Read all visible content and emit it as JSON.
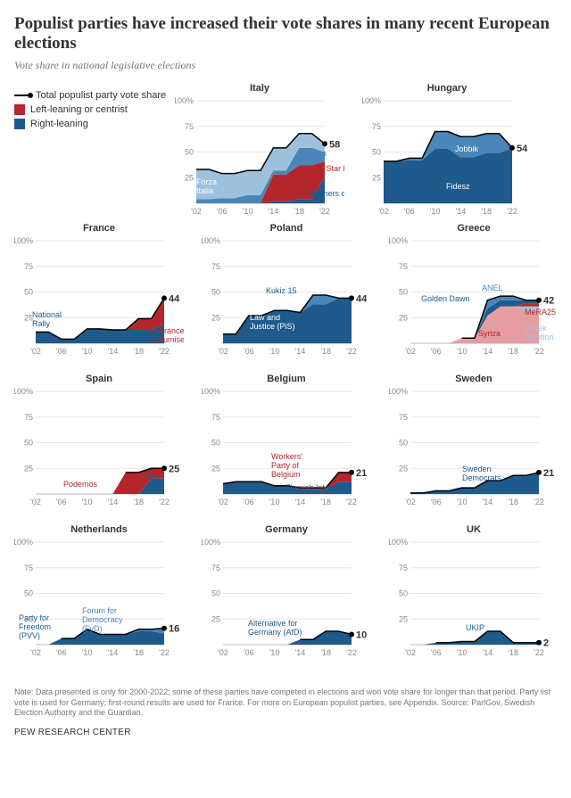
{
  "title": "Populist parties have increased their vote shares in many recent European elections",
  "subtitle": "Vote share in national legislative elections",
  "legend": {
    "total": "Total populist party vote share",
    "left": "Left-leaning or centrist",
    "right": "Right-leaning"
  },
  "colors": {
    "right_dark": "#1f5a8c",
    "right_mid": "#4a86b8",
    "right_light": "#9dc1dd",
    "left_dark": "#b5262c",
    "left_light": "#e49ea1",
    "line": "#000000",
    "grid": "#e5e5e5",
    "axis": "#888888",
    "bg": "#ffffff"
  },
  "axis": {
    "xlabels": [
      "'02",
      "'06",
      "'10",
      "'14",
      "'18",
      "'22"
    ],
    "ylabels": [
      "25",
      "50",
      "75",
      "100%"
    ],
    "ymax": 100
  },
  "panels": [
    {
      "country": "Italy",
      "end_value": 58,
      "series": [
        {
          "name": "Brothers of Italy",
          "color": "#1f5a8c",
          "label_color": "#1f5a8c",
          "lx": 150,
          "ly": 113,
          "vals": [
            0,
            0,
            0,
            0,
            0,
            0,
            2,
            2,
            4,
            4,
            26
          ]
        },
        {
          "name": "Five Star Movement",
          "color": "#b5262c",
          "label_color": "#b5262c",
          "lx": 150,
          "ly": 85,
          "vals": [
            0,
            0,
            0,
            0,
            0,
            0,
            26,
            26,
            33,
            33,
            15
          ]
        },
        {
          "name": "Lega",
          "color": "#4a86b8",
          "label_color": "#4a86b8",
          "lx": 150,
          "ly": 68,
          "vals": [
            4,
            4,
            5,
            5,
            8,
            8,
            4,
            4,
            17,
            17,
            9
          ]
        },
        {
          "name": "Forza Italia",
          "label": "Forza\nItalia",
          "color": "#9dc1dd",
          "label_color": "#ffffff",
          "lx": 24,
          "ly": 100,
          "vals": [
            29,
            29,
            24,
            24,
            24,
            24,
            22,
            22,
            14,
            14,
            8
          ]
        }
      ]
    },
    {
      "country": "Hungary",
      "end_value": 54,
      "series": [
        {
          "name": "Fidesz",
          "color": "#1f5a8c",
          "label_color": "#ffffff",
          "lx": 94,
          "ly": 105,
          "vals": [
            41,
            41,
            42,
            42,
            53,
            53,
            45,
            45,
            49,
            49,
            54
          ]
        },
        {
          "name": "Jobbik",
          "color": "#4a86b8",
          "label_color": "#ffffff",
          "lx": 104,
          "ly": 63,
          "vals": [
            0,
            0,
            2,
            2,
            17,
            17,
            20,
            20,
            19,
            19,
            0
          ]
        }
      ]
    },
    {
      "country": "France",
      "end_value": 44,
      "series": [
        {
          "name": "National Rally",
          "label": "National\nRally",
          "color": "#1f5a8c",
          "label_color": "#1f5a8c",
          "lx": 20,
          "ly": 92,
          "vals": [
            11,
            11,
            4,
            4,
            14,
            14,
            13,
            13,
            13,
            13,
            19
          ]
        },
        {
          "name": "La France Insoumise",
          "label": "La France\nInsoumise",
          "color": "#b5262c",
          "label_color": "#b5262c",
          "lx": 150,
          "ly": 110,
          "vals": [
            0,
            0,
            0,
            0,
            0,
            0,
            0,
            0,
            11,
            11,
            25
          ]
        }
      ]
    },
    {
      "country": "Poland",
      "end_value": 44,
      "series": [
        {
          "name": "Law and Justice (PiS)",
          "label": "Law and\nJustice (PiS)",
          "color": "#1f5a8c",
          "label_color": "#ffffff",
          "lx": 54,
          "ly": 95,
          "vals": [
            9,
            9,
            27,
            27,
            32,
            32,
            30,
            38,
            38,
            44,
            44
          ]
        },
        {
          "name": "Kukiz 15",
          "color": "#4a86b8",
          "label_color": "#1f5a8c",
          "lx": 72,
          "ly": 65,
          "vals": [
            0,
            0,
            0,
            0,
            0,
            0,
            0,
            9,
            9,
            0,
            0
          ]
        }
      ]
    },
    {
      "country": "Greece",
      "end_value": 42,
      "series": [
        {
          "name": "Syriza",
          "color": "#e49ea1",
          "label_color": "#b5262c",
          "lx": 100,
          "ly": 113,
          "vals": [
            0,
            0,
            0,
            0,
            5,
            5,
            27,
            36,
            36,
            32,
            32
          ]
        },
        {
          "name": "Greek Solution",
          "label": "Greek\nSolution",
          "color": "#9dc1dd",
          "label_color": "#9dc1dd",
          "lx": 152,
          "ly": 107,
          "vals": [
            0,
            0,
            0,
            0,
            0,
            0,
            0,
            0,
            0,
            4,
            4
          ]
        },
        {
          "name": "MeRA25",
          "color": "#b5262c",
          "label_color": "#b5262c",
          "lx": 152,
          "ly": 89,
          "vals": [
            0,
            0,
            0,
            0,
            0,
            0,
            0,
            0,
            0,
            3,
            3
          ]
        },
        {
          "name": "Golden Dawn",
          "color": "#1f5a8c",
          "label_color": "#1f5a8c",
          "lx": 36,
          "ly": 74,
          "vals": [
            0,
            0,
            0,
            0,
            0,
            0,
            7,
            6,
            6,
            3,
            3
          ]
        },
        {
          "name": "ANEL",
          "color": "#4a86b8",
          "label_color": "#4a86b8",
          "lx": 104,
          "ly": 62,
          "vals": [
            0,
            0,
            0,
            0,
            0,
            0,
            8,
            4,
            4,
            0,
            0
          ]
        }
      ]
    },
    {
      "country": "Spain",
      "end_value": 25,
      "series": [
        {
          "name": "Vox",
          "color": "#1f5a8c",
          "label_color": "#1f5a8c",
          "lx": 146,
          "ly": 104,
          "vals": [
            0,
            0,
            0,
            0,
            0,
            0,
            0,
            0,
            0,
            15,
            15
          ]
        },
        {
          "name": "Podemos",
          "color": "#b5262c",
          "label_color": "#b5262c",
          "lx": 55,
          "ly": 113,
          "vals": [
            0,
            0,
            0,
            0,
            0,
            0,
            0,
            21,
            21,
            10,
            10
          ]
        }
      ]
    },
    {
      "country": "Belgium",
      "end_value": 21,
      "series": [
        {
          "name": "Flemish Interest",
          "color": "#1f5a8c",
          "label_color": "#1f5a8c",
          "lx": 94,
          "ly": 117,
          "vals": [
            10,
            12,
            12,
            12,
            8,
            8,
            4,
            4,
            4,
            12,
            12
          ]
        },
        {
          "name": "Workers' Party of Belgium",
          "label": "Workers'\nParty of\nBelgium",
          "color": "#b5262c",
          "label_color": "#b5262c",
          "lx": 78,
          "ly": 82,
          "vals": [
            0,
            0,
            0,
            0,
            0,
            0,
            2,
            2,
            2,
            9,
            9
          ]
        }
      ]
    },
    {
      "country": "Sweden",
      "end_value": 21,
      "series": [
        {
          "name": "Sweden Democrats",
          "label": "Sweden\nDemocrats",
          "color": "#1f5a8c",
          "label_color": "#1f5a8c",
          "lx": 82,
          "ly": 96,
          "vals": [
            1,
            1,
            3,
            3,
            6,
            6,
            13,
            13,
            18,
            18,
            21
          ]
        }
      ]
    },
    {
      "country": "Netherlands",
      "end_value": 16,
      "series": [
        {
          "name": "Party for Freedom (PVV)",
          "label": "Party for\nFreedom\n(PVV)",
          "color": "#1f5a8c",
          "label_color": "#1f5a8c",
          "lx": 5,
          "ly": 94,
          "vals": [
            0,
            0,
            6,
            6,
            15,
            10,
            10,
            10,
            13,
            13,
            11
          ]
        },
        {
          "name": "Forum for Democracy (FvD)",
          "label": "Forum for\nDemocracy\n(FvD)",
          "color": "#4a86b8",
          "label_color": "#4a86b8",
          "lx": 76,
          "ly": 86,
          "vals": [
            0,
            0,
            0,
            0,
            0,
            0,
            0,
            0,
            2,
            2,
            5
          ]
        }
      ]
    },
    {
      "country": "Germany",
      "end_value": 10,
      "series": [
        {
          "name": "Alternative for Germany (AfD)",
          "label": "Alternative for\nGermany (AfD)",
          "color": "#1f5a8c",
          "label_color": "#1f5a8c",
          "lx": 52,
          "ly": 100,
          "vals": [
            0,
            0,
            0,
            0,
            0,
            0,
            5,
            5,
            13,
            13,
            10
          ]
        }
      ]
    },
    {
      "country": "UK",
      "end_value": 2,
      "series": [
        {
          "name": "UKIP",
          "color": "#1f5a8c",
          "label_color": "#1f5a8c",
          "lx": 86,
          "ly": 105,
          "vals": [
            0,
            0,
            2,
            2,
            3,
            3,
            13,
            13,
            2,
            2,
            2
          ]
        }
      ]
    }
  ],
  "note": "Note: Data presented is only for 2000-2022; some of these parties have competed in elections and won vote share for longer than that period. Party list vote is used for Germany; first-round results are used for France. For more on European populist parties, see Appendix. Source: ParlGov, Swedish Election Authority and the Guardian.",
  "source": "PEW RESEARCH CENTER"
}
